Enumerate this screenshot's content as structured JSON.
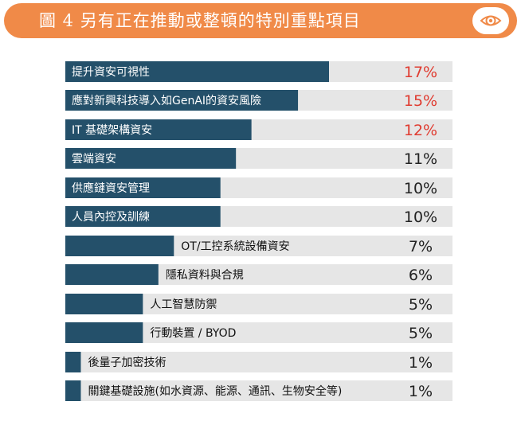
{
  "title": "圖 4 另有正在推動或整頓的特別重點項目",
  "icon": "eye-icon",
  "colors": {
    "title_bg": "#f08a48",
    "bar": "#24506a",
    "track": "#e6e6e6",
    "highlight": "#e03c31",
    "normal_value": "#222222",
    "label_on_bar": "#ffffff",
    "label_off_bar": "#111111"
  },
  "chart_data": {
    "type": "bar",
    "orientation": "horizontal",
    "title": "圖 4 另有正在推動或整頓的特別重點項目",
    "unit": "%",
    "xlim": [
      0,
      17
    ],
    "categories": [
      "提升資安可視性",
      "應對新興科技導入如GenAI的資安風險",
      "IT 基礎架構資安",
      "雲端資安",
      "供應鏈資安管理",
      "人員內控及訓練",
      "OT/工控系統設備資安",
      "隱私資料與合規",
      "人工智慧防禦",
      "行動裝置 / BYOD",
      "後量子加密技術",
      "關鍵基礎設施(如水資源、能源、通訊、生物安全等)"
    ],
    "values": [
      17,
      15,
      12,
      11,
      10,
      10,
      7,
      6,
      5,
      5,
      1,
      1
    ],
    "value_labels": [
      "17%",
      "15%",
      "12%",
      "11%",
      "10%",
      "10%",
      "7%",
      "6%",
      "5%",
      "5%",
      "1%",
      "1%"
    ],
    "highlighted": [
      true,
      true,
      true,
      false,
      false,
      false,
      false,
      false,
      false,
      false,
      false,
      false
    ],
    "label_inside_bar": [
      true,
      true,
      true,
      true,
      true,
      true,
      false,
      false,
      false,
      false,
      false,
      false
    ]
  }
}
